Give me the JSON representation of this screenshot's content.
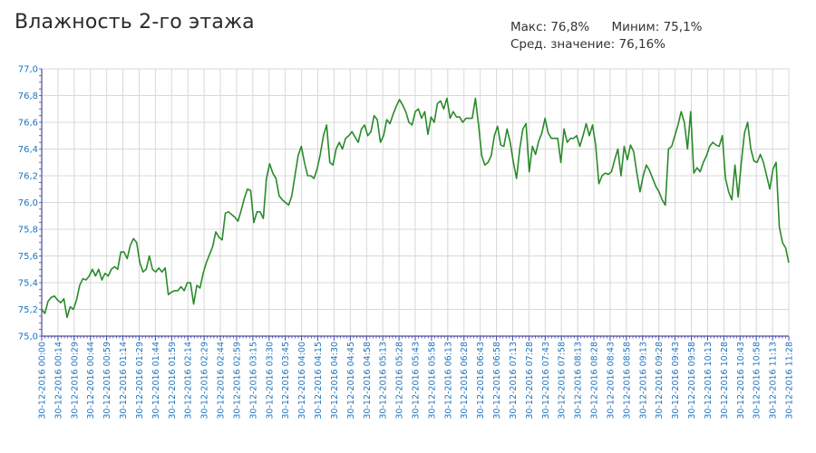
{
  "title": "Влажность 2-го этажа",
  "stats": {
    "max_label": "Макс:",
    "max_value": "76,8%",
    "min_label": "Миним:",
    "min_value": "75,1%",
    "avg_label": "Сред. значение:",
    "avg_value": "76,16%"
  },
  "colors": {
    "line": "#2a8a2a",
    "axis": "#4a4aa0",
    "grid": "#d8d8d8",
    "tick_text": "#1e73be"
  },
  "chart_data": {
    "type": "line",
    "title": "Влажность 2-го этажа",
    "xlabel": "",
    "ylabel": "",
    "ylim": [
      75.0,
      77.0
    ],
    "yticks": [
      "75,0",
      "75,2",
      "75,4",
      "75,6",
      "75,8",
      "76,0",
      "76,2",
      "76,4",
      "76,6",
      "76,8",
      "77,0"
    ],
    "xtick_labels": [
      "30-12-2016 00:00",
      "30-12-2016 00:14",
      "30-12-2016 00:29",
      "30-12-2016 00:44",
      "30-12-2016 00:59",
      "30-12-2016 01:14",
      "30-12-2016 01:29",
      "30-12-2016 01:44",
      "30-12-2016 01:59",
      "30-12-2016 02:14",
      "30-12-2016 02:29",
      "30-12-2016 02:44",
      "30-12-2016 02:59",
      "30-12-2016 03:15",
      "30-12-2016 03:30",
      "30-12-2016 03:45",
      "30-12-2016 04:00",
      "30-12-2016 04:15",
      "30-12-2016 04:30",
      "30-12-2016 04:45",
      "30-12-2016 04:58",
      "30-12-2016 05:13",
      "30-12-2016 05:28",
      "30-12-2016 05:43",
      "30-12-2016 05:58",
      "30-12-2016 06:13",
      "30-12-2016 06:28",
      "30-12-2016 06:43",
      "30-12-2016 06:58",
      "30-12-2016 07:13",
      "30-12-2016 07:28",
      "30-12-2016 07:43",
      "30-12-2016 07:58",
      "30-12-2016 08:13",
      "30-12-2016 08:28",
      "30-12-2016 08:43",
      "30-12-2016 08:58",
      "30-12-2016 09:13",
      "30-12-2016 09:28",
      "30-12-2016 09:43",
      "30-12-2016 09:58",
      "30-12-2016 10:13",
      "30-12-2016 10:28",
      "30-12-2016 10:43",
      "30-12-2016 10:58",
      "30-12-2016 11:13",
      "30-12-2016 11:28"
    ],
    "grid": true,
    "series": [
      {
        "values": [
          75.2,
          75.17,
          75.26,
          75.29,
          75.3,
          75.27,
          75.25,
          75.28,
          75.14,
          75.22,
          75.2,
          75.27,
          75.38,
          75.43,
          75.42,
          75.45,
          75.5,
          75.45,
          75.5,
          75.42,
          75.47,
          75.45,
          75.5,
          75.52,
          75.5,
          75.63,
          75.63,
          75.58,
          75.68,
          75.73,
          75.7,
          75.55,
          75.48,
          75.5,
          75.6,
          75.5,
          75.48,
          75.51,
          75.48,
          75.51,
          75.31,
          75.33,
          75.34,
          75.34,
          75.37,
          75.34,
          75.4,
          75.4,
          75.24,
          75.38,
          75.36,
          75.47,
          75.55,
          75.61,
          75.67,
          75.78,
          75.74,
          75.72,
          75.92,
          75.93,
          75.91,
          75.89,
          75.86,
          75.94,
          76.03,
          76.1,
          76.09,
          75.85,
          75.93,
          75.93,
          75.88,
          76.18,
          76.29,
          76.22,
          76.18,
          76.05,
          76.02,
          76.0,
          75.98,
          76.05,
          76.2,
          76.35,
          76.42,
          76.3,
          76.2,
          76.2,
          76.18,
          76.25,
          76.36,
          76.5,
          76.58,
          76.3,
          76.28,
          76.4,
          76.45,
          76.4,
          76.48,
          76.5,
          76.53,
          76.49,
          76.45,
          76.55,
          76.58,
          76.5,
          76.53,
          76.65,
          76.62,
          76.45,
          76.5,
          76.62,
          76.59,
          76.66,
          76.72,
          76.77,
          76.73,
          76.68,
          76.6,
          76.58,
          76.68,
          76.7,
          76.63,
          76.68,
          76.51,
          76.64,
          76.6,
          76.74,
          76.76,
          76.7,
          76.78,
          76.63,
          76.68,
          76.64,
          76.64,
          76.6,
          76.63,
          76.63,
          76.63,
          76.78,
          76.58,
          76.35,
          76.28,
          76.3,
          76.35,
          76.5,
          76.57,
          76.43,
          76.42,
          76.55,
          76.45,
          76.3,
          76.18,
          76.4,
          76.55,
          76.59,
          76.23,
          76.42,
          76.36,
          76.46,
          76.52,
          76.63,
          76.52,
          76.48,
          76.48,
          76.48,
          76.3,
          76.55,
          76.45,
          76.48,
          76.48,
          76.5,
          76.42,
          76.5,
          76.59,
          76.5,
          76.58,
          76.43,
          76.14,
          76.2,
          76.22,
          76.21,
          76.23,
          76.32,
          76.4,
          76.2,
          76.42,
          76.32,
          76.43,
          76.38,
          76.22,
          76.08,
          76.2,
          76.28,
          76.24,
          76.18,
          76.12,
          76.08,
          76.02,
          75.98,
          76.4,
          76.42,
          76.5,
          76.58,
          76.68,
          76.6,
          76.4,
          76.68,
          76.22,
          76.26,
          76.23,
          76.3,
          76.35,
          76.42,
          76.45,
          76.43,
          76.42,
          76.5,
          76.18,
          76.08,
          76.02,
          76.28,
          76.04,
          76.3,
          76.52,
          76.6,
          76.4,
          76.31,
          76.3,
          76.36,
          76.3,
          76.2,
          76.1,
          76.25,
          76.3,
          75.82,
          75.7,
          75.66,
          75.55
        ]
      }
    ]
  }
}
